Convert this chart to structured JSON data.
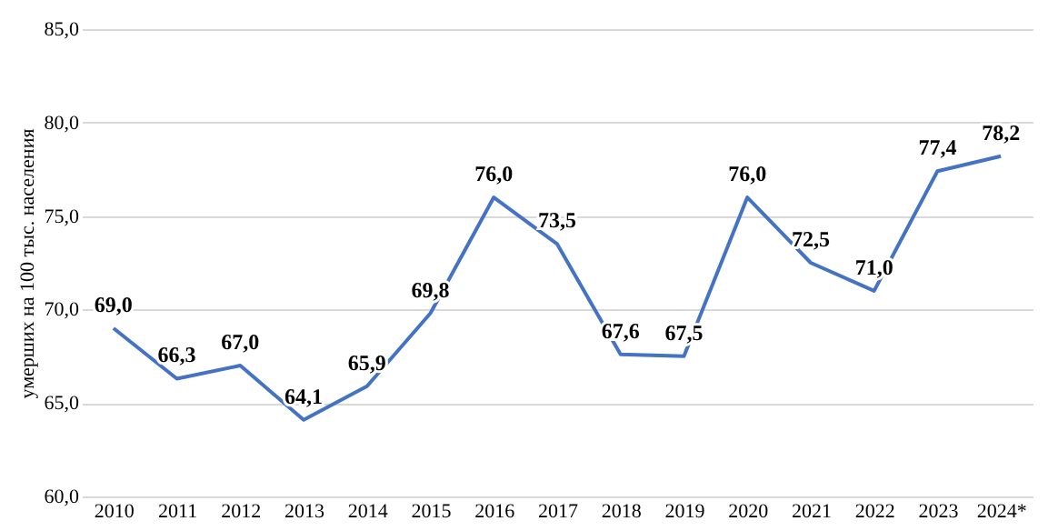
{
  "chart_data": {
    "type": "line",
    "ylabel": "умерших на 100 тыс. населения",
    "categories": [
      "2010",
      "2011",
      "2012",
      "2013",
      "2014",
      "2015",
      "2016",
      "2017",
      "2018",
      "2019",
      "2020",
      "2021",
      "2022",
      "2023",
      "2024*"
    ],
    "series": [
      {
        "color": "#4472c4",
        "values": [
          69.0,
          66.3,
          67.0,
          64.1,
          65.9,
          69.8,
          76.0,
          73.5,
          67.6,
          67.5,
          76.0,
          72.5,
          71.0,
          77.4,
          78.2
        ],
        "value_labels": [
          "69,0",
          "66,3",
          "67,0",
          "64,1",
          "65,9",
          "69,8",
          "76,0",
          "73,5",
          "67,6",
          "67,5",
          "76,0",
          "72,5",
          "71,0",
          "77,4",
          "78,2"
        ]
      }
    ],
    "ylim": [
      60,
      85
    ],
    "yticks": [
      {
        "value": 60,
        "label": "60,0"
      },
      {
        "value": 65,
        "label": "65,0"
      },
      {
        "value": 70,
        "label": "70,0"
      },
      {
        "value": 75,
        "label": "75,0"
      },
      {
        "value": 80,
        "label": "80,0"
      },
      {
        "value": 85,
        "label": "85,0"
      }
    ],
    "grid": "y",
    "marker": "none",
    "line_style": "solid"
  }
}
